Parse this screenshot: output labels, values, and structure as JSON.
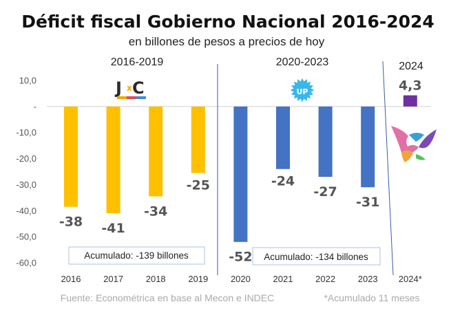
{
  "chart_data": {
    "type": "bar",
    "title": "Déficit fiscal Gobierno Nacional 2016-2024",
    "subtitle": "en billones de pesos a precios de hoy",
    "categories": [
      "2016",
      "2017",
      "2018",
      "2019",
      "2020",
      "2021",
      "2022",
      "2023",
      "2024*"
    ],
    "values": [
      -38.5,
      -41,
      -34.5,
      -25.5,
      -52,
      -24,
      -27,
      -31,
      4.3
    ],
    "data_labels": [
      "-38",
      "-41",
      "-34",
      "-25",
      "-52",
      "-24",
      "-27",
      "-31",
      "4,3"
    ],
    "ylim": [
      -60,
      10
    ],
    "yticks": [
      {
        "value": 10,
        "label": "10,0"
      },
      {
        "value": 0,
        "label": "-"
      },
      {
        "value": -10,
        "label": "-10,0"
      },
      {
        "value": -20,
        "label": "-20,0"
      },
      {
        "value": -30,
        "label": "-30,0"
      },
      {
        "value": -40,
        "label": "-40,0"
      },
      {
        "value": -50,
        "label": "-50,0"
      },
      {
        "value": -60,
        "label": "-60,0"
      }
    ],
    "colors": [
      "#FFC000",
      "#FFC000",
      "#FFC000",
      "#FFC000",
      "#4472C4",
      "#4472C4",
      "#4472C4",
      "#4472C4",
      "#7030A0"
    ],
    "periods": [
      {
        "label": "2016-2019",
        "logo": "JxC",
        "accumulated": "Acumulado: -139 billones"
      },
      {
        "label": "2020-2023",
        "logo": "UP",
        "accumulated": "Acumulado: -134 billones"
      },
      {
        "label": "2024",
        "logo": "lla-bird"
      }
    ],
    "source": "Fuente: Econométrica en base al Mecon e INDEC",
    "footnote": "*Acumulado 11 meses",
    "grid": false
  },
  "logos": {
    "jxc_j": "J",
    "jxc_x": "x",
    "jxc_c": "C",
    "up_text": "UP"
  }
}
